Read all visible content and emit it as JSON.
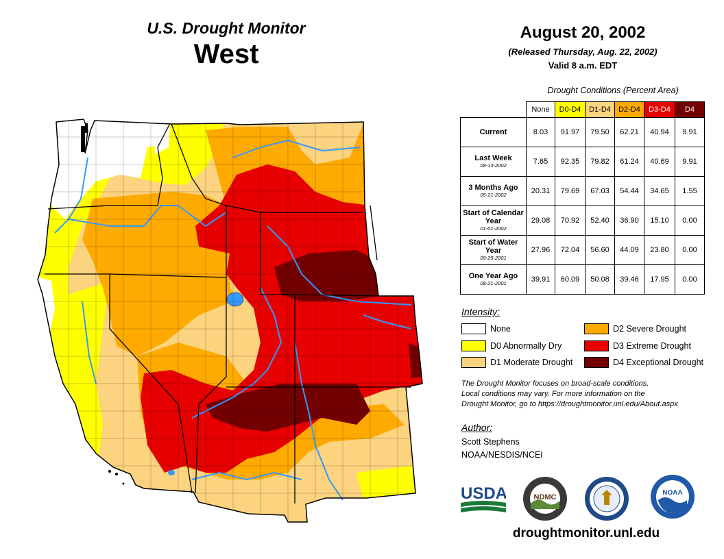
{
  "header": {
    "monitor_title": "U.S. Drought Monitor",
    "region": "West",
    "date": "August 20, 2002",
    "released": "(Released Thursday, Aug. 22, 2002)",
    "valid": "Valid 8 a.m. EDT"
  },
  "table": {
    "caption": "Drought Conditions (Percent Area)",
    "columns": [
      {
        "label": "None",
        "color": "#ffffff"
      },
      {
        "label": "D0-D4",
        "color": "#ffff00"
      },
      {
        "label": "D1-D4",
        "color": "#fcd37f"
      },
      {
        "label": "D2-D4",
        "color": "#ffaa00"
      },
      {
        "label": "D3-D4",
        "color": "#e60000"
      },
      {
        "label": "D4",
        "color": "#730000"
      }
    ],
    "rows": [
      {
        "label": "Current",
        "date": "",
        "values": [
          "8.03",
          "91.97",
          "79.50",
          "62.21",
          "40.94",
          "9.91"
        ]
      },
      {
        "label": "Last Week",
        "date": "08-13-2002",
        "values": [
          "7.65",
          "92.35",
          "79.82",
          "61.24",
          "40.69",
          "9.91"
        ]
      },
      {
        "label": "3 Months Ago",
        "date": "05-21-2002",
        "values": [
          "20.31",
          "79.69",
          "67.03",
          "54.44",
          "34.65",
          "1.55"
        ]
      },
      {
        "label": "Start of Calendar Year",
        "date": "01-01-2002",
        "values": [
          "29.08",
          "70.92",
          "52.40",
          "36.90",
          "15.10",
          "0.00"
        ]
      },
      {
        "label": "Start of Water Year",
        "date": "09-25-2001",
        "values": [
          "27.96",
          "72.04",
          "56.60",
          "44.09",
          "23.80",
          "0.00"
        ]
      },
      {
        "label": "One Year Ago",
        "date": "08-21-2001",
        "values": [
          "39.91",
          "60.09",
          "50.08",
          "39.46",
          "17.95",
          "0.00"
        ]
      }
    ]
  },
  "legend": {
    "title": "Intensity:",
    "items": [
      {
        "label": "None",
        "color": "#ffffff"
      },
      {
        "label": "D0 Abnormally Dry",
        "color": "#ffff00"
      },
      {
        "label": "D1 Moderate Drought",
        "color": "#fcd37f"
      },
      {
        "label": "D2 Severe Drought",
        "color": "#ffaa00"
      },
      {
        "label": "D3 Extreme Drought",
        "color": "#e60000"
      },
      {
        "label": "D4 Exceptional Drought",
        "color": "#730000"
      }
    ]
  },
  "note": {
    "line1": "The Drought Monitor focuses on broad-scale conditions.",
    "line2": "Local conditions may vary. For more information on the",
    "line3": "Drought Monitor, go to https://droughtmonitor.unl.edu/About.aspx"
  },
  "author": {
    "label": "Author:",
    "name": "Scott Stephens",
    "org": "NOAA/NESDIS/NCEI"
  },
  "logos": [
    "USDA",
    "NDMC",
    "NOAA"
  ],
  "website": "droughtmonitor.unl.edu",
  "map_colors": {
    "none": "#ffffff",
    "d0": "#ffff00",
    "d1": "#fcd37f",
    "d2": "#ffaa00",
    "d3": "#e60000",
    "d4": "#730000",
    "rivers": "#3399ff",
    "boundaries": "#000000"
  }
}
